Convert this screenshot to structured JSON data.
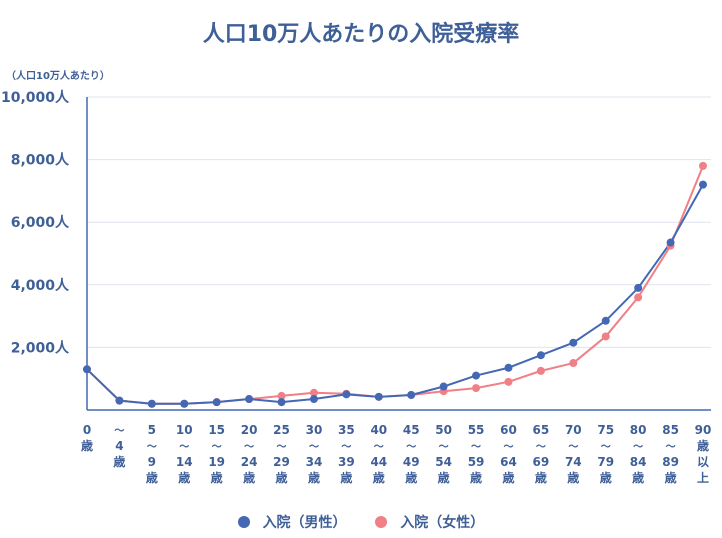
{
  "chart_data": {
    "type": "line",
    "title": "人口10万人あたりの入院受療率",
    "unit_label": "（人口10万人あたり）",
    "ylim": [
      0,
      10000
    ],
    "yticks": [
      2000,
      4000,
      6000,
      8000,
      10000
    ],
    "ytick_labels": [
      "2,000人",
      "4,000人",
      "6,000人",
      "8,000人",
      "10,000人"
    ],
    "grid": true,
    "legend_position": "bottom",
    "categories": [
      [
        "0",
        "歳"
      ],
      [
        "〜",
        "4",
        "歳"
      ],
      [
        "5",
        "〜",
        "9",
        "歳"
      ],
      [
        "10",
        "〜",
        "14",
        "歳"
      ],
      [
        "15",
        "〜",
        "19",
        "歳"
      ],
      [
        "20",
        "〜",
        "24",
        "歳"
      ],
      [
        "25",
        "〜",
        "29",
        "歳"
      ],
      [
        "30",
        "〜",
        "34",
        "歳"
      ],
      [
        "35",
        "〜",
        "39",
        "歳"
      ],
      [
        "40",
        "〜",
        "44",
        "歳"
      ],
      [
        "45",
        "〜",
        "49",
        "歳"
      ],
      [
        "50",
        "〜",
        "54",
        "歳"
      ],
      [
        "55",
        "〜",
        "59",
        "歳"
      ],
      [
        "60",
        "〜",
        "64",
        "歳"
      ],
      [
        "65",
        "〜",
        "69",
        "歳"
      ],
      [
        "70",
        "〜",
        "74",
        "歳"
      ],
      [
        "75",
        "〜",
        "79",
        "歳"
      ],
      [
        "80",
        "〜",
        "84",
        "歳"
      ],
      [
        "85",
        "〜",
        "89",
        "歳"
      ],
      [
        "90",
        "歳",
        "以",
        "上"
      ]
    ],
    "series": [
      {
        "name": "入院（男性）",
        "color": "#4468b4",
        "values": [
          1300,
          300,
          200,
          200,
          250,
          350,
          250,
          350,
          500,
          420,
          480,
          750,
          1100,
          1350,
          1750,
          2150,
          2850,
          3900,
          5350,
          7200
        ]
      },
      {
        "name": "入院（女性）",
        "color": "#f07f86",
        "values": [
          1300,
          300,
          200,
          200,
          250,
          350,
          450,
          550,
          520,
          420,
          480,
          600,
          700,
          900,
          1250,
          1500,
          2350,
          3600,
          5250,
          7800
        ]
      }
    ]
  }
}
